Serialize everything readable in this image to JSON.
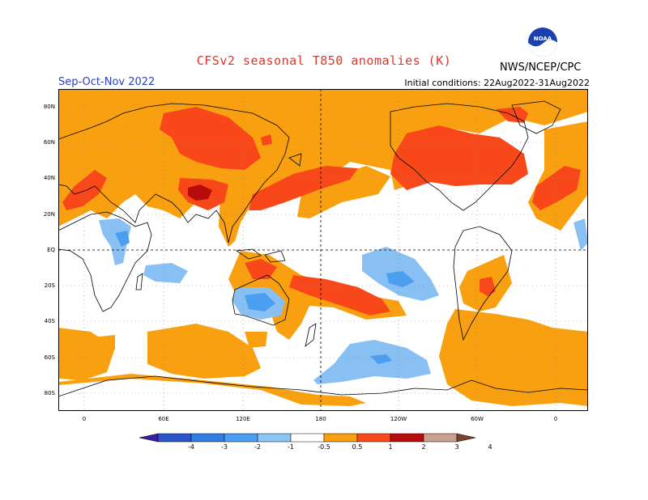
{
  "header": {
    "title": "CFSv2 seasonal T850 anomalies (K)",
    "season": "Sep-Oct-Nov 2022",
    "initial_conditions": "Initial conditions: 22Aug2022-31Aug2022",
    "agency": "NWS/NCEP/CPC",
    "logo_text": "NOAA"
  },
  "map": {
    "lat_ticks": [
      "80N",
      "60N",
      "40N",
      "20N",
      "EQ",
      "20S",
      "40S",
      "60S",
      "80S"
    ],
    "lon_ticks": [
      "0",
      "60E",
      "120E",
      "180",
      "120W",
      "60W",
      "0"
    ]
  },
  "colorbar": {
    "labels": [
      "-4",
      "-3",
      "-2",
      "-1",
      "-0.5",
      "0.5",
      "1",
      "2",
      "3",
      "4"
    ],
    "colors": [
      "#3b1ea6",
      "#2a55c8",
      "#2f7fe0",
      "#4a9ff0",
      "#8cc4f8",
      "#ffffff",
      "#f8a010",
      "#f84a1c",
      "#b80c0c",
      "#c8a090",
      "#7a4030"
    ]
  },
  "colors": {
    "warm_05": "#f8a010",
    "warm_1": "#f8481a",
    "warm_2": "#b80c0c",
    "cool_05": "#88c0f4",
    "cool_1": "#4a9ff0"
  }
}
